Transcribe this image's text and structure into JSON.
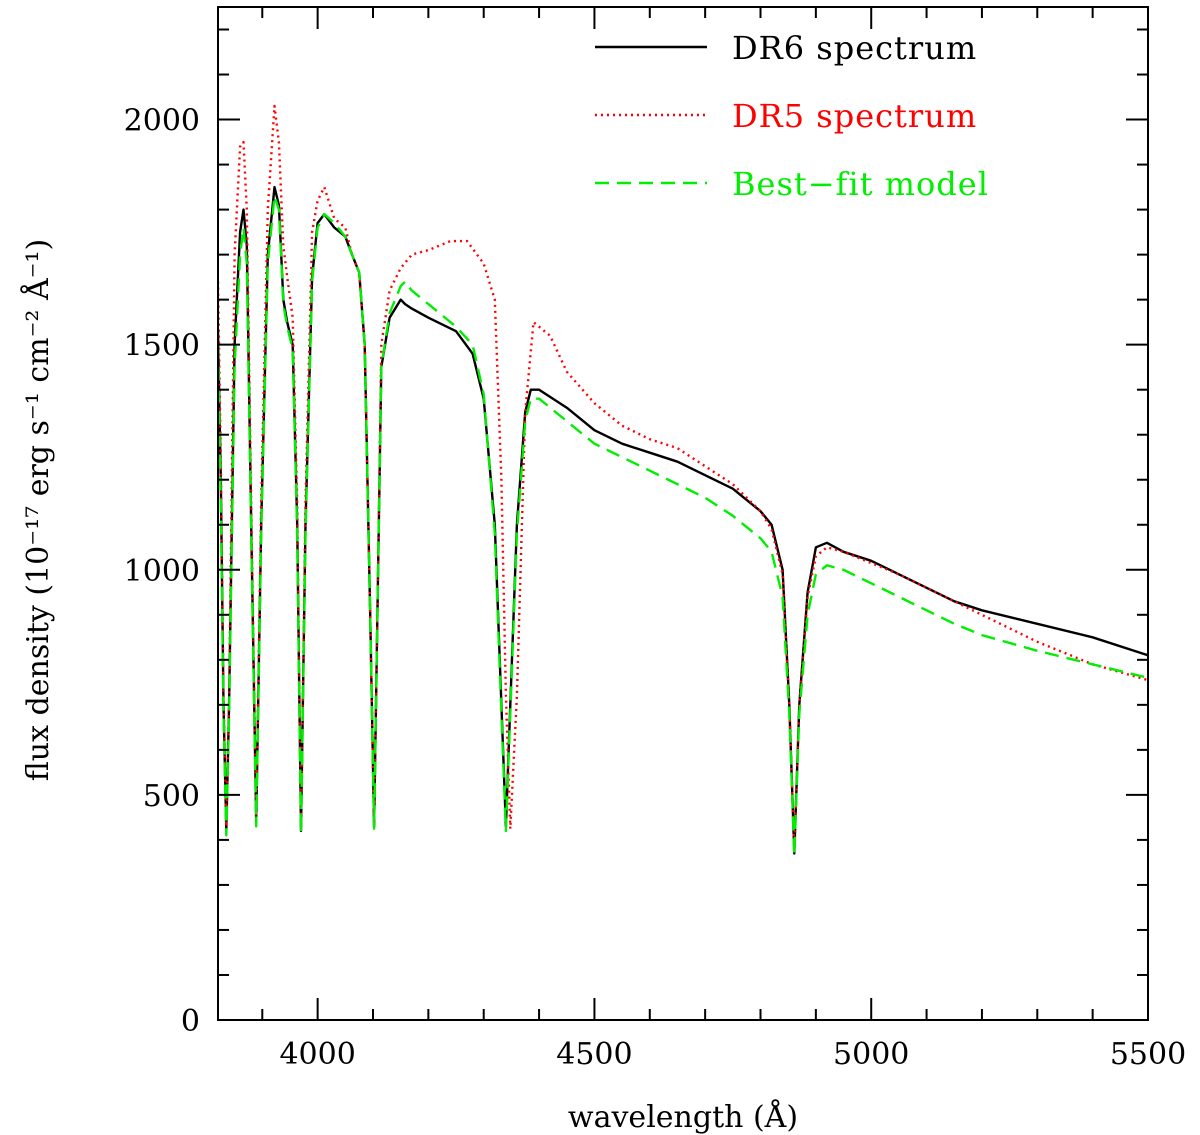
{
  "chart_data": {
    "type": "line",
    "xlabel": "wavelength (Å)",
    "ylabel": "flux density (10⁻¹⁷ erg s⁻¹ cm⁻² Å⁻¹)",
    "xlim": [
      3820,
      5500
    ],
    "ylim": [
      0,
      2250
    ],
    "x_ticks": [
      4000,
      4500,
      5000,
      5500
    ],
    "y_ticks": [
      0,
      500,
      1000,
      1500,
      2000
    ],
    "grid": false,
    "legend_position": "top-right",
    "series": [
      {
        "name": "DR6 spectrum",
        "color": "#000000",
        "dash": "solid",
        "x": [
          3820,
          3825,
          3830,
          3835,
          3840,
          3850,
          3860,
          3866,
          3872,
          3880,
          3889,
          3898,
          3910,
          3922,
          3930,
          3938,
          3945,
          3955,
          3963,
          3970,
          3978,
          3990,
          4000,
          4012,
          4030,
          4050,
          4062,
          4075,
          4085,
          4095,
          4102,
          4108,
          4115,
          4130,
          4150,
          4158,
          4170,
          4200,
          4250,
          4280,
          4300,
          4320,
          4332,
          4340,
          4348,
          4360,
          4375,
          4385,
          4400,
          4450,
          4500,
          4550,
          4600,
          4650,
          4700,
          4750,
          4800,
          4820,
          4840,
          4852,
          4861,
          4870,
          4885,
          4900,
          4920,
          4950,
          5000,
          5050,
          5100,
          5150,
          5200,
          5300,
          5400,
          5500
        ],
        "y": [
          1530,
          1200,
          700,
          420,
          700,
          1500,
          1750,
          1800,
          1720,
          1100,
          440,
          1100,
          1700,
          1850,
          1810,
          1600,
          1550,
          1500,
          1100,
          420,
          1100,
          1650,
          1770,
          1790,
          1760,
          1740,
          1700,
          1660,
          1500,
          900,
          430,
          900,
          1450,
          1560,
          1600,
          1590,
          1580,
          1560,
          1530,
          1480,
          1380,
          1100,
          700,
          430,
          700,
          1100,
          1350,
          1400,
          1400,
          1360,
          1310,
          1280,
          1260,
          1240,
          1210,
          1180,
          1130,
          1100,
          1000,
          700,
          370,
          700,
          950,
          1050,
          1060,
          1040,
          1020,
          990,
          960,
          930,
          910,
          880,
          850,
          810
        ]
      },
      {
        "name": "DR5 spectrum",
        "color": "#ff0000",
        "dash": "dotted",
        "x": [
          3820,
          3825,
          3830,
          3835,
          3840,
          3850,
          3860,
          3866,
          3872,
          3880,
          3889,
          3898,
          3910,
          3922,
          3930,
          3938,
          3945,
          3955,
          3963,
          3970,
          3978,
          3990,
          4000,
          4012,
          4030,
          4050,
          4062,
          4075,
          4085,
          4095,
          4102,
          4108,
          4115,
          4130,
          4150,
          4170,
          4200,
          4240,
          4270,
          4300,
          4320,
          4332,
          4340,
          4348,
          4360,
          4375,
          4390,
          4420,
          4450,
          4500,
          4550,
          4600,
          4650,
          4700,
          4750,
          4800,
          4820,
          4840,
          4852,
          4861,
          4870,
          4885,
          4900,
          4920,
          4950,
          5000,
          5050,
          5100,
          5150,
          5200,
          5300,
          5400,
          5500
        ],
        "y": [
          1640,
          1250,
          720,
          430,
          720,
          1700,
          1940,
          1950,
          1800,
          1150,
          445,
          1150,
          1800,
          2030,
          1950,
          1720,
          1650,
          1560,
          1150,
          425,
          1150,
          1750,
          1820,
          1850,
          1780,
          1760,
          1700,
          1660,
          1500,
          900,
          430,
          900,
          1500,
          1620,
          1670,
          1700,
          1710,
          1730,
          1730,
          1680,
          1600,
          1200,
          720,
          425,
          720,
          1350,
          1550,
          1520,
          1440,
          1370,
          1320,
          1290,
          1270,
          1230,
          1190,
          1130,
          1090,
          990,
          700,
          375,
          700,
          940,
          1030,
          1050,
          1040,
          1015,
          990,
          960,
          930,
          900,
          840,
          790,
          755
        ]
      },
      {
        "name": "Best−fit model",
        "color": "#00ee00",
        "dash": "dashed",
        "x": [
          3820,
          3825,
          3830,
          3835,
          3840,
          3850,
          3860,
          3866,
          3872,
          3880,
          3889,
          3898,
          3910,
          3922,
          3930,
          3938,
          3945,
          3955,
          3963,
          3970,
          3978,
          3990,
          4000,
          4012,
          4030,
          4050,
          4062,
          4075,
          4085,
          4095,
          4102,
          4108,
          4115,
          4130,
          4150,
          4158,
          4170,
          4200,
          4250,
          4280,
          4300,
          4320,
          4332,
          4340,
          4348,
          4360,
          4375,
          4385,
          4400,
          4450,
          4500,
          4550,
          4600,
          4650,
          4700,
          4750,
          4800,
          4820,
          4840,
          4852,
          4861,
          4870,
          4885,
          4900,
          4920,
          4950,
          5000,
          5050,
          5100,
          5150,
          5200,
          5300,
          5400,
          5500
        ],
        "y": [
          1500,
          1150,
          680,
          410,
          680,
          1450,
          1700,
          1760,
          1680,
          1080,
          430,
          1080,
          1680,
          1830,
          1800,
          1590,
          1540,
          1490,
          1080,
          415,
          1080,
          1640,
          1760,
          1790,
          1770,
          1740,
          1700,
          1660,
          1500,
          900,
          425,
          900,
          1450,
          1570,
          1630,
          1640,
          1620,
          1590,
          1540,
          1500,
          1390,
          1080,
          680,
          420,
          680,
          1080,
          1330,
          1380,
          1380,
          1330,
          1280,
          1250,
          1220,
          1190,
          1160,
          1120,
          1070,
          1040,
          940,
          680,
          365,
          680,
          900,
          990,
          1010,
          1000,
          970,
          940,
          910,
          880,
          855,
          820,
          790,
          760
        ]
      }
    ]
  }
}
